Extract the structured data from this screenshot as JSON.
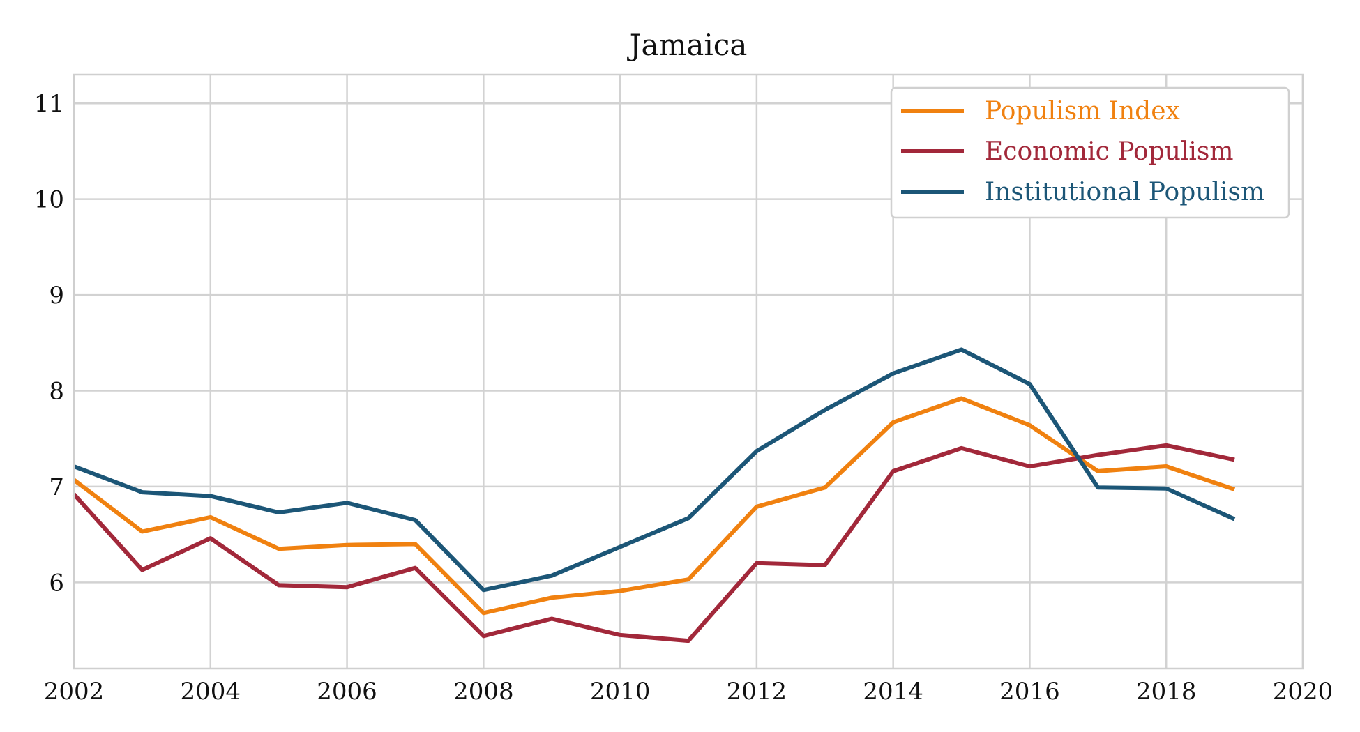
{
  "chart_data": {
    "type": "line",
    "title": "Jamaica",
    "xlabel": "",
    "ylabel": "",
    "xlim": [
      2002,
      2020
    ],
    "ylim": [
      5.1,
      11.3
    ],
    "xticks": [
      2002,
      2004,
      2006,
      2008,
      2010,
      2012,
      2014,
      2016,
      2018,
      2020
    ],
    "yticks": [
      6,
      7,
      8,
      9,
      10,
      11
    ],
    "grid": true,
    "legend_position": "top-right",
    "x": [
      2002,
      2003,
      2004,
      2005,
      2006,
      2007,
      2008,
      2009,
      2010,
      2011,
      2012,
      2013,
      2014,
      2015,
      2016,
      2017,
      2018,
      2019
    ],
    "series": [
      {
        "name": "Populism Index",
        "color": "#f08110",
        "values": [
          7.07,
          6.53,
          6.68,
          6.35,
          6.39,
          6.4,
          5.68,
          5.84,
          5.91,
          6.03,
          6.79,
          6.99,
          7.67,
          7.92,
          7.64,
          7.16,
          7.21,
          6.97
        ]
      },
      {
        "name": "Economic Populism",
        "color": "#a2283a",
        "values": [
          6.92,
          6.13,
          6.46,
          5.97,
          5.95,
          6.15,
          5.44,
          5.62,
          5.45,
          5.39,
          6.2,
          6.18,
          7.16,
          7.4,
          7.21,
          7.33,
          7.43,
          7.28
        ]
      },
      {
        "name": "Institutional Populism",
        "color": "#1c5677",
        "values": [
          7.21,
          6.94,
          6.9,
          6.73,
          6.83,
          6.65,
          5.92,
          6.07,
          6.37,
          6.67,
          7.37,
          7.8,
          8.18,
          8.43,
          8.07,
          6.99,
          6.98,
          6.66
        ]
      }
    ]
  }
}
